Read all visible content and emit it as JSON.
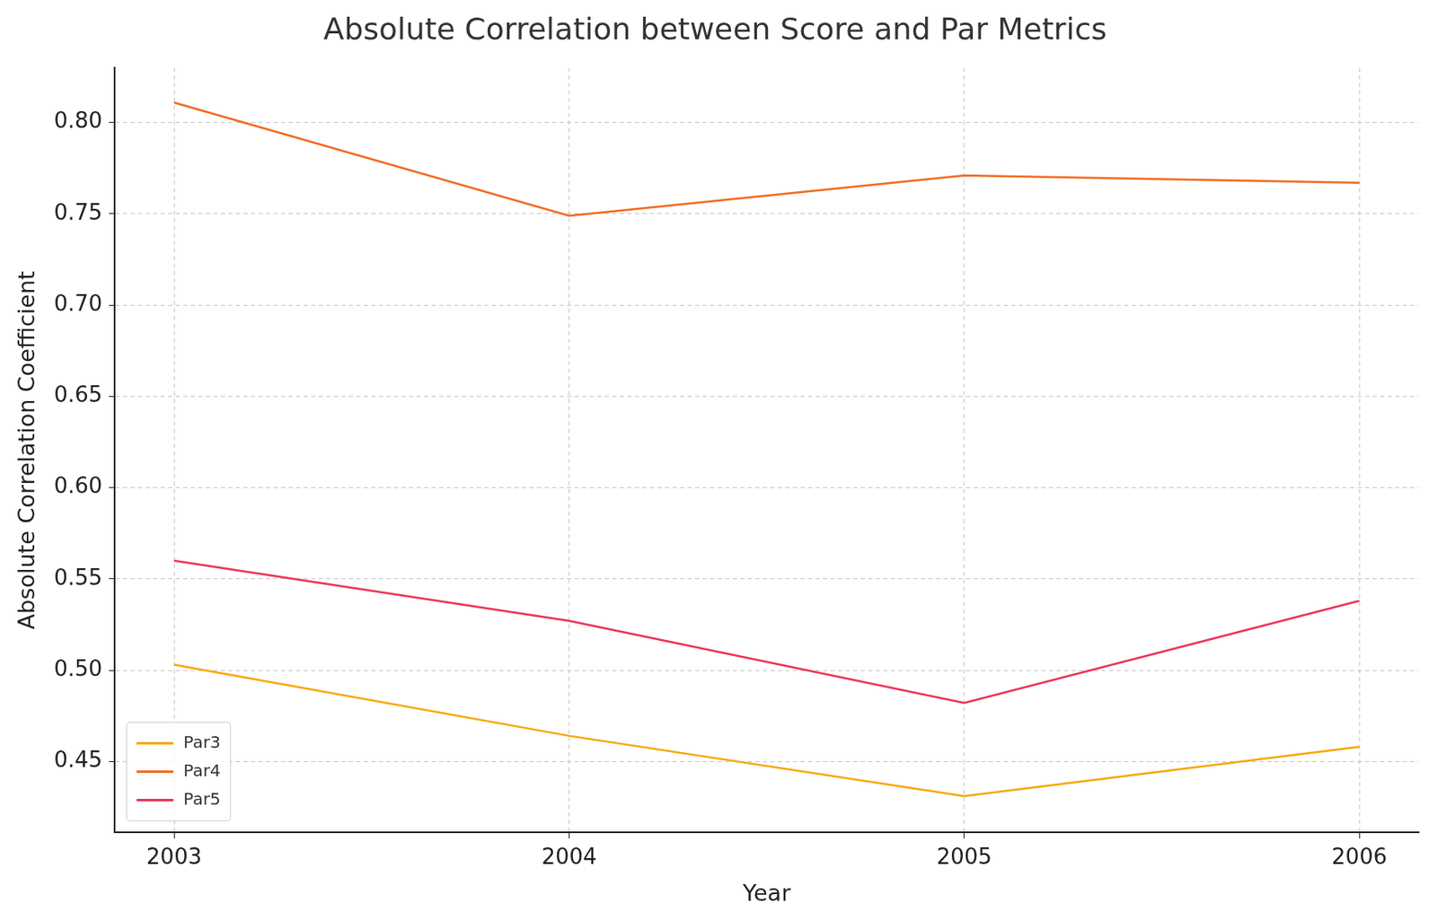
{
  "chart_data": {
    "type": "line",
    "title": "Absolute Correlation between Score and Par Metrics",
    "x_label": "Year",
    "y_label": "Absolute Correlation Coefficient",
    "x": [
      2003,
      2004,
      2005,
      2006
    ],
    "series": [
      {
        "name": "Par3",
        "color": "#f9a70a",
        "values": [
          0.503,
          0.464,
          0.431,
          0.458
        ]
      },
      {
        "name": "Par4",
        "color": "#f26b21",
        "values": [
          0.811,
          0.749,
          0.771,
          0.767
        ]
      },
      {
        "name": "Par5",
        "color": "#ec3558",
        "values": [
          0.56,
          0.527,
          0.482,
          0.538
        ]
      }
    ],
    "xlim": [
      2002.85,
      2006.15
    ],
    "xticks": [
      2003,
      2004,
      2005,
      2006
    ],
    "ylim": [
      0.411,
      0.83
    ],
    "yticks": [
      0.45,
      {
        "value": 0.5,
        "label": "0.50"
      },
      0.55,
      {
        "value": 0.6,
        "label": "0.60"
      },
      0.65,
      {
        "value": 0.7,
        "label": "0.70"
      },
      0.75,
      {
        "value": 0.8,
        "label": "0.80"
      }
    ],
    "grid": true,
    "legend": "lower left"
  }
}
